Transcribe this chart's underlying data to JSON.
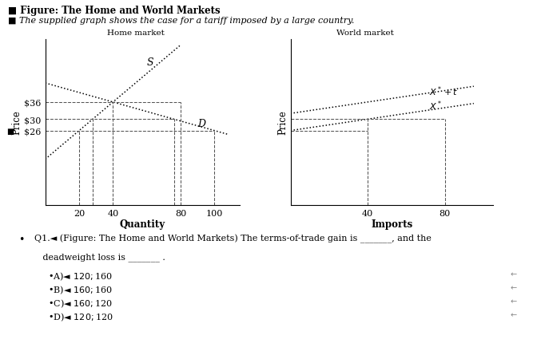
{
  "title": "■ Figure: The Home and World Markets",
  "subtitle": "■ The supplied graph shows the case for a tariff imposed by a large country.",
  "home_market_label": "Home market",
  "world_market_label": "World market",
  "home_xlabel": "Quantity",
  "home_ylabel": "Price",
  "world_xlabel": "Imports",
  "world_ylabel": "Price",
  "home_xticks": [
    20,
    40,
    80,
    100
  ],
  "home_ytick_labels": [
    "$26",
    "$30",
    "$36"
  ],
  "world_xticks": [
    40,
    80
  ],
  "p_tariff": 36,
  "p_free": 30,
  "p_world": 26,
  "home_xlim": [
    0,
    115
  ],
  "home_ylim": [
    0,
    58
  ],
  "world_xlim": [
    0,
    105
  ],
  "world_ylim": [
    0,
    58
  ],
  "line_color": "black",
  "dash_color": "#555555",
  "bg_color": "white",
  "q1_line1": "Q1.◄ (Figure: The Home and World Markets) The terms-of-trade gain is _______, and the",
  "q1_line2": "   deadweight loss is _______ .",
  "choices": [
    "•A)◄ $120; $160",
    "•B)◄ $160; $160",
    "•C)◄ $160; $120",
    "•D)◄ $120; $120"
  ]
}
